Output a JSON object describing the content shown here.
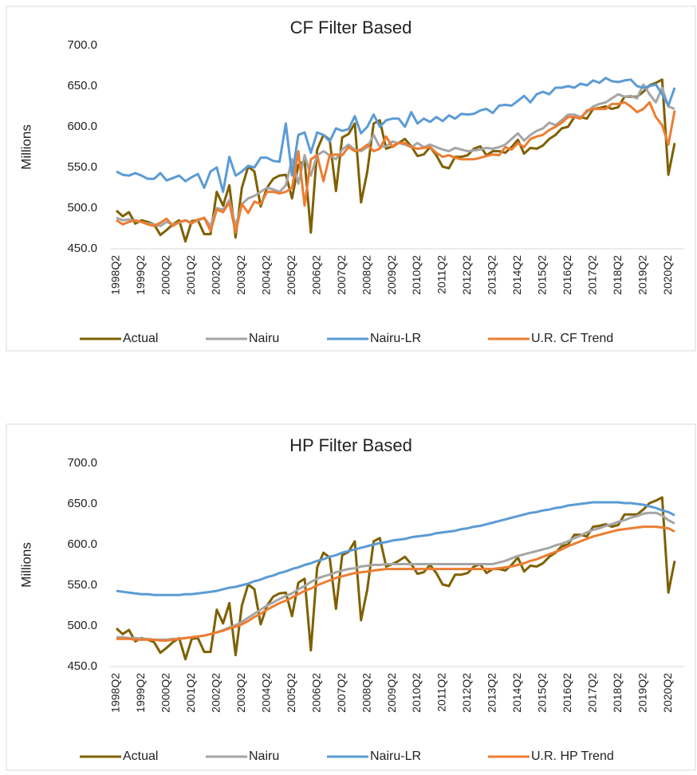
{
  "chart_data": [
    {
      "type": "line",
      "title": "CF Filter Based",
      "y_label": "Millions",
      "categories": [
        "1998Q2",
        null,
        null,
        null,
        "1999Q2",
        null,
        null,
        null,
        "2000Q2",
        null,
        null,
        null,
        "2001Q2",
        null,
        null,
        null,
        "2002Q2",
        null,
        null,
        null,
        "2003Q2",
        null,
        null,
        null,
        "2004Q2",
        null,
        null,
        null,
        "2005Q2",
        null,
        null,
        null,
        "2006Q2",
        null,
        null,
        null,
        "2007Q2",
        null,
        null,
        null,
        "2008Q2",
        null,
        null,
        null,
        "2009Q2",
        null,
        null,
        null,
        "2010Q2",
        null,
        null,
        null,
        "2011Q2",
        null,
        null,
        null,
        "2012Q2",
        null,
        null,
        null,
        "2013Q2",
        null,
        null,
        null,
        "2014Q2",
        null,
        null,
        null,
        "2015Q2",
        null,
        null,
        null,
        "2016Q2",
        null,
        null,
        null,
        "2017Q2",
        null,
        null,
        null,
        "2018Q2",
        null,
        null,
        null,
        "2019Q2",
        null,
        null,
        null,
        "2020Q2",
        null
      ],
      "ylim": [
        450,
        700
      ],
      "yticks": [
        {
          "value": 450,
          "label": "450.0"
        },
        {
          "value": 500,
          "label": "500.0"
        },
        {
          "value": 550,
          "label": "550.0"
        },
        {
          "value": 600,
          "label": "600.0"
        },
        {
          "value": 650,
          "label": "650.0"
        },
        {
          "value": 700,
          "label": "700.0"
        }
      ],
      "grid": false,
      "series": [
        {
          "name": "Actual",
          "color": "#7f6000",
          "values": [
            497,
            490,
            495,
            481,
            485,
            483,
            480,
            467,
            473,
            480,
            485,
            459,
            484,
            485,
            468,
            468,
            520,
            503,
            528,
            464,
            525,
            551,
            545,
            502,
            525,
            536,
            540,
            541,
            512,
            553,
            558,
            470,
            572,
            590,
            584,
            521,
            587,
            591,
            604,
            507,
            545,
            604,
            608,
            573,
            576,
            580,
            585,
            576,
            564,
            566,
            575,
            565,
            551,
            549,
            563,
            563,
            565,
            573,
            576,
            565,
            570,
            570,
            568,
            575,
            584,
            567,
            574,
            573,
            577,
            585,
            590,
            598,
            600,
            612,
            612,
            610,
            622,
            623,
            625,
            622,
            624,
            637,
            637,
            637,
            643,
            651,
            654,
            658,
            541,
            580
          ]
        },
        {
          "name": "Nairu",
          "color": "#a5a5a5",
          "values": [
            488,
            485,
            486,
            484,
            483,
            481,
            480,
            478,
            483,
            480,
            482,
            485,
            482,
            485,
            488,
            478,
            500,
            498,
            510,
            478,
            505,
            512,
            515,
            520,
            525,
            523,
            520,
            528,
            560,
            530,
            565,
            540,
            565,
            570,
            565,
            560,
            572,
            578,
            572,
            570,
            575,
            590,
            575,
            576,
            582,
            580,
            578,
            575,
            580,
            575,
            578,
            575,
            572,
            570,
            574,
            572,
            570,
            571,
            572,
            574,
            573,
            575,
            578,
            585,
            592,
            583,
            590,
            595,
            598,
            605,
            602,
            608,
            615,
            615,
            612,
            618,
            625,
            628,
            630,
            635,
            640,
            637,
            638,
            635,
            652,
            640,
            630,
            648,
            625,
            622
          ]
        },
        {
          "name": "Nairu-LR",
          "color": "#5b9bd5",
          "values": [
            545,
            541,
            540,
            543,
            540,
            536,
            536,
            543,
            534,
            537,
            540,
            533,
            538,
            542,
            525,
            545,
            550,
            520,
            563,
            540,
            545,
            552,
            550,
            562,
            562,
            558,
            557,
            604,
            540,
            590,
            593,
            568,
            593,
            590,
            582,
            598,
            595,
            597,
            613,
            592,
            600,
            615,
            600,
            608,
            610,
            610,
            600,
            618,
            604,
            610,
            606,
            612,
            607,
            614,
            610,
            616,
            615,
            616,
            620,
            622,
            617,
            626,
            627,
            626,
            632,
            638,
            630,
            640,
            643,
            640,
            648,
            648,
            650,
            648,
            653,
            651,
            657,
            654,
            660,
            656,
            655,
            657,
            658,
            650,
            648,
            650,
            652,
            640,
            626,
            648
          ]
        },
        {
          "name": "U.R. CF Trend",
          "color": "#ed7d31",
          "values": [
            485,
            480,
            483,
            485,
            483,
            480,
            478,
            482,
            487,
            478,
            483,
            485,
            481,
            486,
            488,
            472,
            498,
            495,
            507,
            470,
            505,
            494,
            508,
            505,
            520,
            520,
            518,
            520,
            525,
            570,
            503,
            560,
            565,
            533,
            565,
            566,
            565,
            575,
            570,
            572,
            578,
            570,
            573,
            588,
            575,
            580,
            580,
            575,
            573,
            574,
            575,
            568,
            563,
            565,
            562,
            560,
            560,
            560,
            562,
            564,
            566,
            565,
            575,
            572,
            580,
            575,
            585,
            588,
            590,
            596,
            600,
            605,
            612,
            612,
            610,
            620,
            622,
            622,
            622,
            628,
            628,
            630,
            625,
            618,
            622,
            630,
            612,
            602,
            578,
            620
          ]
        }
      ]
    },
    {
      "type": "line",
      "title": "HP Filter Based",
      "y_label": "Millions",
      "categories": [
        "1998Q2",
        null,
        null,
        null,
        "1999Q2",
        null,
        null,
        null,
        "2000Q2",
        null,
        null,
        null,
        "2001Q2",
        null,
        null,
        null,
        "2002Q2",
        null,
        null,
        null,
        "2003Q2",
        null,
        null,
        null,
        "2004Q2",
        null,
        null,
        null,
        "2005Q2",
        null,
        null,
        null,
        "2006Q2",
        null,
        null,
        null,
        "2007Q2",
        null,
        null,
        null,
        "2008Q2",
        null,
        null,
        null,
        "2009Q2",
        null,
        null,
        null,
        "2010Q2",
        null,
        null,
        null,
        "2011Q2",
        null,
        null,
        null,
        "2012Q2",
        null,
        null,
        null,
        "2013Q2",
        null,
        null,
        null,
        "2014Q2",
        null,
        null,
        null,
        "2015Q2",
        null,
        null,
        null,
        "2016Q2",
        null,
        null,
        null,
        "2017Q2",
        null,
        null,
        null,
        "2018Q2",
        null,
        null,
        null,
        "2019Q2",
        null,
        null,
        null,
        "2020Q2",
        null
      ],
      "ylim": [
        450,
        700
      ],
      "yticks": [
        {
          "value": 450,
          "label": "450.0"
        },
        {
          "value": 500,
          "label": "500.0"
        },
        {
          "value": 550,
          "label": "550.0"
        },
        {
          "value": 600,
          "label": "600.0"
        },
        {
          "value": 650,
          "label": "650.0"
        },
        {
          "value": 700,
          "label": "700.0"
        }
      ],
      "grid": false,
      "series": [
        {
          "name": "Actual",
          "color": "#7f6000",
          "values": [
            497,
            490,
            495,
            481,
            485,
            483,
            480,
            467,
            473,
            480,
            485,
            459,
            484,
            485,
            468,
            468,
            520,
            503,
            528,
            464,
            525,
            551,
            545,
            502,
            525,
            536,
            540,
            541,
            512,
            553,
            558,
            470,
            572,
            590,
            584,
            521,
            587,
            591,
            604,
            507,
            545,
            604,
            608,
            573,
            576,
            580,
            585,
            576,
            564,
            566,
            575,
            565,
            551,
            549,
            563,
            563,
            565,
            573,
            576,
            565,
            570,
            570,
            568,
            575,
            584,
            567,
            574,
            573,
            577,
            585,
            590,
            598,
            600,
            612,
            612,
            610,
            622,
            623,
            625,
            622,
            624,
            637,
            637,
            637,
            643,
            651,
            654,
            658,
            541,
            580
          ]
        },
        {
          "name": "Nairu",
          "color": "#a5a5a5",
          "values": [
            486,
            486,
            485,
            485,
            484,
            484,
            483,
            483,
            483,
            484,
            484,
            485,
            486,
            487,
            488,
            490,
            492,
            495,
            498,
            501,
            505,
            510,
            515,
            520,
            525,
            529,
            533,
            537,
            540,
            545,
            549,
            554,
            558,
            561,
            563,
            566,
            568,
            570,
            571,
            573,
            574,
            575,
            575,
            576,
            576,
            576,
            576,
            576,
            576,
            576,
            576,
            576,
            576,
            576,
            576,
            576,
            576,
            576,
            576,
            576,
            576,
            578,
            580,
            583,
            586,
            588,
            590,
            592,
            594,
            596,
            599,
            601,
            604,
            608,
            611,
            615,
            618,
            620,
            623,
            625,
            628,
            630,
            633,
            635,
            638,
            639,
            639,
            636,
            630,
            626
          ]
        },
        {
          "name": "Nairu-LR",
          "color": "#5b9bd5",
          "values": [
            543,
            542,
            541,
            540,
            539,
            539,
            538,
            538,
            538,
            538,
            538,
            539,
            539,
            540,
            541,
            542,
            543,
            545,
            547,
            548,
            550,
            552,
            555,
            557,
            560,
            562,
            565,
            567,
            570,
            572,
            575,
            577,
            580,
            582,
            585,
            587,
            590,
            592,
            594,
            596,
            598,
            600,
            602,
            603,
            605,
            606,
            607,
            609,
            610,
            611,
            612,
            614,
            615,
            616,
            617,
            619,
            620,
            622,
            623,
            625,
            627,
            629,
            631,
            633,
            635,
            637,
            639,
            640,
            642,
            643,
            645,
            646,
            648,
            649,
            650,
            651,
            652,
            652,
            652,
            652,
            652,
            651,
            651,
            650,
            649,
            647,
            645,
            642,
            640,
            636
          ]
        },
        {
          "name": "U.R. HP Trend",
          "color": "#ed7d31",
          "values": [
            484,
            484,
            484,
            483,
            483,
            483,
            483,
            482,
            482,
            483,
            484,
            485,
            486,
            487,
            488,
            490,
            492,
            494,
            497,
            499,
            502,
            506,
            511,
            515,
            520,
            524,
            528,
            531,
            535,
            539,
            543,
            546,
            550,
            553,
            556,
            559,
            561,
            563,
            565,
            566,
            567,
            568,
            569,
            570,
            570,
            570,
            570,
            570,
            570,
            570,
            570,
            570,
            570,
            570,
            570,
            570,
            570,
            570,
            570,
            570,
            570,
            571,
            572,
            573,
            575,
            577,
            580,
            582,
            585,
            588,
            591,
            594,
            598,
            601,
            604,
            607,
            610,
            612,
            614,
            616,
            618,
            619,
            620,
            621,
            622,
            622,
            622,
            621,
            620,
            616
          ]
        }
      ]
    }
  ]
}
